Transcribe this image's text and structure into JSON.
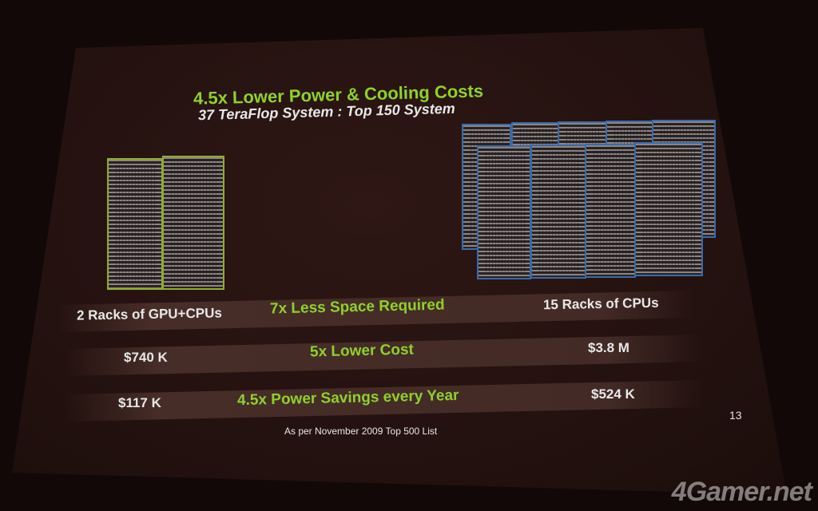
{
  "slide": {
    "title": "4.5x Lower Power & Cooling Costs",
    "subtitle": "37 TeraFlop System : Top 150 System",
    "rows": [
      {
        "left": "2 Racks of GPU+CPUs",
        "center": "7x Less Space Required",
        "right": "15 Racks of CPUs"
      },
      {
        "left": "$740 K",
        "center": "5x Lower Cost",
        "right": "$3.8 M"
      },
      {
        "left": "$117 K",
        "center": "4.5x Power Savings every Year",
        "right": "$524 K"
      }
    ],
    "footnote": "As per November 2009 Top 500 List",
    "page_number": "13",
    "accent_color": "#8fd12a"
  },
  "watermark": "4Gamer.net"
}
